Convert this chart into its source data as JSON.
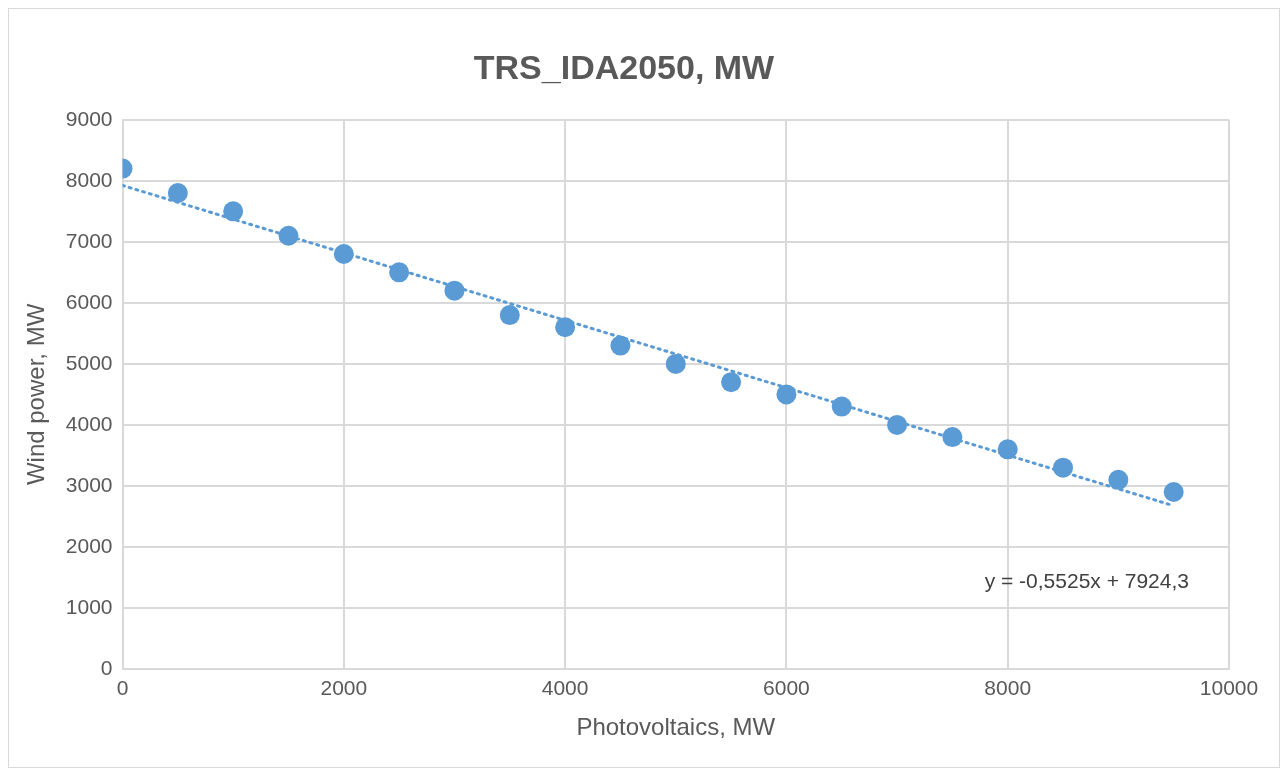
{
  "chart_data": {
    "type": "scatter",
    "title": "TRS_IDA2050, MW",
    "xlabel": "Photovoltaics, MW",
    "ylabel": "Wind power, MW",
    "marker": "circle",
    "grid": true,
    "x": [
      0,
      500,
      1000,
      1500,
      2000,
      2500,
      3000,
      3500,
      4000,
      4500,
      5000,
      5500,
      6000,
      6500,
      7000,
      7500,
      8000,
      8500,
      9000,
      9500
    ],
    "series": [
      {
        "color": "#5b9bd5",
        "values": [
          8200,
          7800,
          7500,
          7100,
          6800,
          6500,
          6200,
          5800,
          5600,
          5300,
          5000,
          4700,
          4500,
          4300,
          4000,
          3800,
          3600,
          3300,
          3100,
          2900
        ]
      },
      {
        "type": "line",
        "color": "#5b9bd5",
        "x": [
          0,
          9500
        ],
        "values": [
          7924.3,
          2675.5
        ],
        "line_style": "dotted",
        "marker": "none"
      }
    ],
    "xlim": [
      0,
      10000
    ],
    "xticks": [
      0,
      2000,
      4000,
      6000,
      8000,
      10000
    ],
    "ylim": [
      0,
      9000
    ],
    "yticks": [
      0,
      1000,
      2000,
      3000,
      4000,
      5000,
      6000,
      7000,
      8000,
      9000
    ],
    "annotations": [
      "y = -0,5525x + 7924,3"
    ]
  }
}
